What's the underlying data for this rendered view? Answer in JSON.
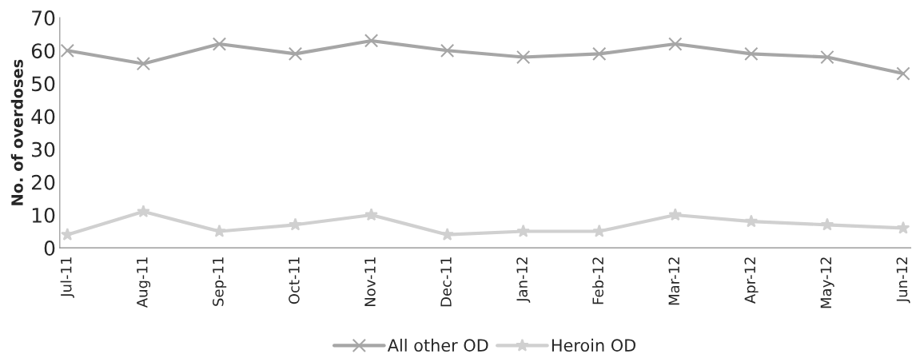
{
  "chart_data": {
    "type": "line",
    "ylabel": "No. of overdoses",
    "categories": [
      "Jul-11",
      "Aug-11",
      "Sep-11",
      "Oct-11",
      "Nov-11",
      "Dec-11",
      "Jan-12",
      "Feb-12",
      "Mar-12",
      "Apr-12",
      "May-12",
      "Jun-12"
    ],
    "series": [
      {
        "name": "All other OD",
        "color": "#a6a6a6",
        "marker": "cross",
        "values": [
          60,
          56,
          62,
          59,
          63,
          60,
          58,
          59,
          62,
          59,
          58,
          53
        ]
      },
      {
        "name": "Heroin OD",
        "color": "#d0d0d0",
        "marker": "star",
        "values": [
          4,
          11,
          5,
          7,
          10,
          4,
          5,
          5,
          10,
          8,
          7,
          6
        ]
      }
    ],
    "ylim": [
      0,
      70
    ],
    "yticks": [
      0,
      10,
      20,
      30,
      40,
      50,
      60,
      70
    ],
    "grid": false,
    "legend": "bottom"
  }
}
